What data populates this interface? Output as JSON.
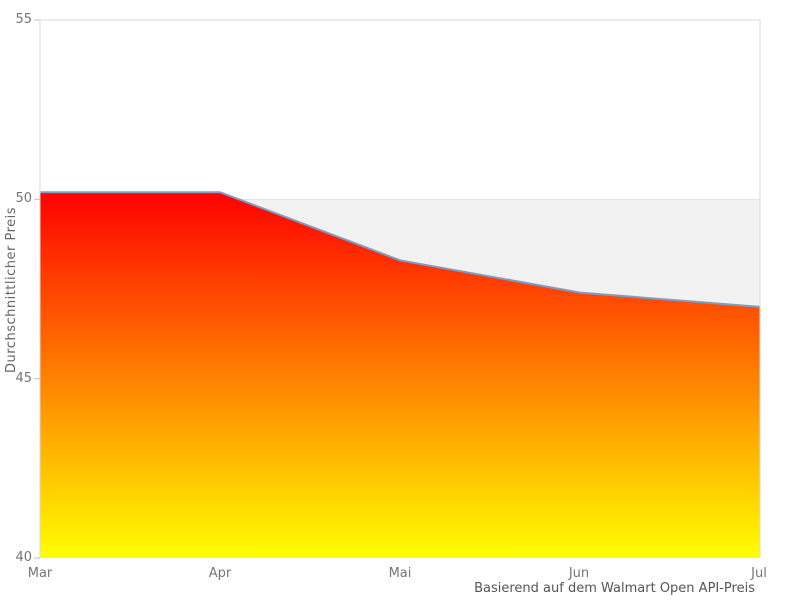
{
  "chart_data": {
    "type": "area",
    "title": "",
    "categories": [
      "Mar",
      "Apr",
      "Mai",
      "Jun",
      "Jul"
    ],
    "series": [
      {
        "name": "Durchschnittlicher Preis",
        "values": [
          50.2,
          50.2,
          48.3,
          47.4,
          47.0
        ]
      }
    ],
    "ylabel": "Durchschnittlicher Preis",
    "xlabel": "",
    "caption": "Basierend auf dem Walmart Open API-Preis",
    "ylim": [
      40,
      55
    ],
    "yticks": [
      55,
      50,
      45,
      40
    ],
    "ytick_labels": [
      "55",
      "50",
      "45",
      "40"
    ],
    "grid": false,
    "legend": "none",
    "reference_band": {
      "from": 40,
      "to": 50
    },
    "colors": {
      "gradient_top": "#ff0000",
      "gradient_bottom": "#ffff00",
      "line": "#7d9dc4",
      "band": "#f2f2f2",
      "band_edge": "#e4e4e4",
      "border": "#d9d9d9",
      "tick_mark": "#bfbfbf",
      "tick_text": "#757575",
      "axis_title_text": "#666666",
      "caption_text": "#555555",
      "background": "#ffffff"
    }
  }
}
